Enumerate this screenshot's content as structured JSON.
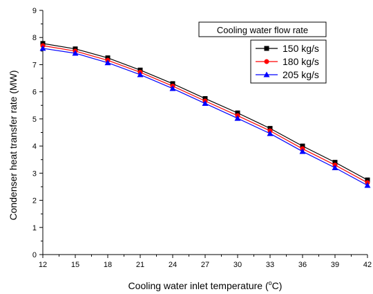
{
  "chart_data": {
    "type": "line",
    "title": "",
    "xlabel_main": "Cooling water inlet temperature (",
    "xlabel_sup": "o",
    "xlabel_end": "C)",
    "ylabel": "Condenser heat transfer rate (MW)",
    "x": [
      12,
      15,
      18,
      21,
      24,
      27,
      30,
      33,
      36,
      39,
      42
    ],
    "xlim": [
      12,
      42
    ],
    "ylim": [
      0,
      9
    ],
    "xticks": [
      "12",
      "15",
      "18",
      "21",
      "24",
      "27",
      "30",
      "33",
      "36",
      "39",
      "42"
    ],
    "yticks": [
      "0",
      "1",
      "2",
      "3",
      "4",
      "5",
      "6",
      "7",
      "8",
      "9"
    ],
    "grid": false,
    "legend_title": "Cooling water flow rate",
    "legend_position": "top-right",
    "series": [
      {
        "name": "150 kg/s",
        "color": "#000000",
        "marker": "square",
        "values": [
          7.78,
          7.58,
          7.25,
          6.8,
          6.3,
          5.75,
          5.22,
          4.65,
          4.0,
          3.4,
          2.75
        ]
      },
      {
        "name": "180 kg/s",
        "color": "#ff0000",
        "marker": "circle",
        "values": [
          7.7,
          7.5,
          7.16,
          6.72,
          6.21,
          5.66,
          5.12,
          4.56,
          3.9,
          3.3,
          2.65
        ]
      },
      {
        "name": "205 kg/s",
        "color": "#0000ff",
        "marker": "triangle",
        "values": [
          7.6,
          7.42,
          7.07,
          6.63,
          6.12,
          5.57,
          5.02,
          4.46,
          3.8,
          3.2,
          2.55
        ]
      }
    ]
  }
}
